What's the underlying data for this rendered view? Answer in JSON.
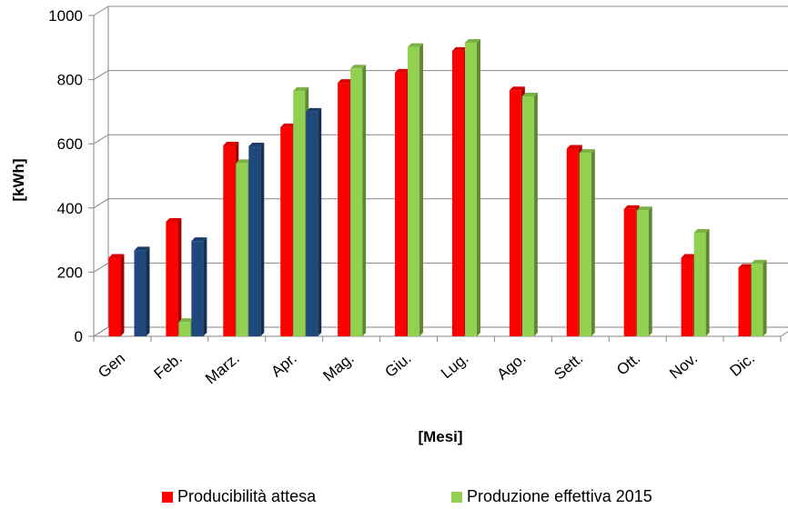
{
  "chart_data": {
    "type": "bar",
    "title": "",
    "xlabel": "[Mesi]",
    "ylabel": "[kWh]",
    "ylim": [
      0,
      1000
    ],
    "yticks": [
      0,
      200,
      400,
      600,
      800,
      1000
    ],
    "grid": true,
    "legend_position": "bottom",
    "categories": [
      "Gen",
      "Feb.",
      "Marz.",
      "Apr.",
      "Mag.",
      "Giu.",
      "Lug.",
      "Ago.",
      "Sett.",
      "Ott.",
      "Nov.",
      "Dic."
    ],
    "series": [
      {
        "name": "Producibilità attesa",
        "color": "#ff0000",
        "values": [
          245,
          357,
          595,
          652,
          790,
          822,
          890,
          767,
          585,
          397,
          245,
          214
        ]
      },
      {
        "name": "Produzione effettiva 2015",
        "color": "#92d050",
        "values": [
          null,
          45,
          540,
          765,
          835,
          902,
          915,
          748,
          572,
          393,
          323,
          227
        ]
      },
      {
        "name": "",
        "color": "#1f497d",
        "values": [
          268,
          297,
          592,
          700,
          null,
          null,
          null,
          null,
          null,
          null,
          null,
          null
        ]
      }
    ]
  },
  "legend": {
    "series0": "Producibilità attesa",
    "series1": "Produzione effettiva 2015"
  }
}
